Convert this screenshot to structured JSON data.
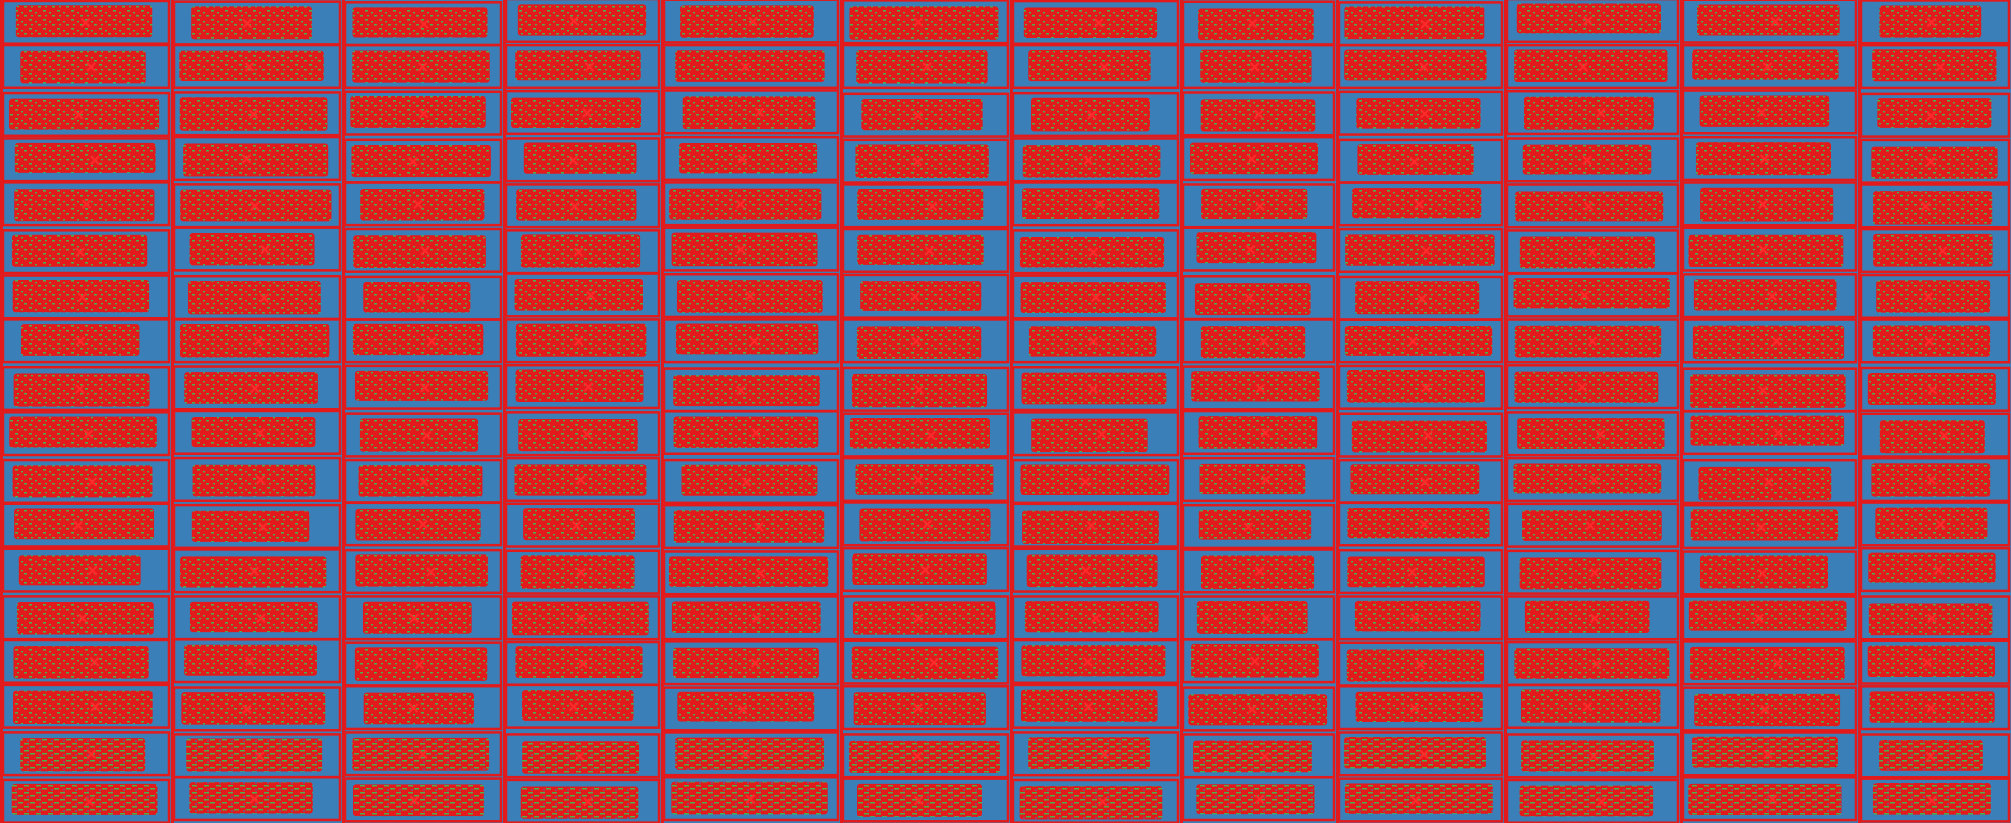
{
  "image": {
    "kind": "false-color plot segmentation map",
    "grid": {
      "columns": 12,
      "rows": 18
    },
    "colors": {
      "background": "#3a7fb8",
      "vegetation": "#e31a1c",
      "soil_mix": "#4daf4a",
      "plot_border": "#e31a1c"
    }
  }
}
